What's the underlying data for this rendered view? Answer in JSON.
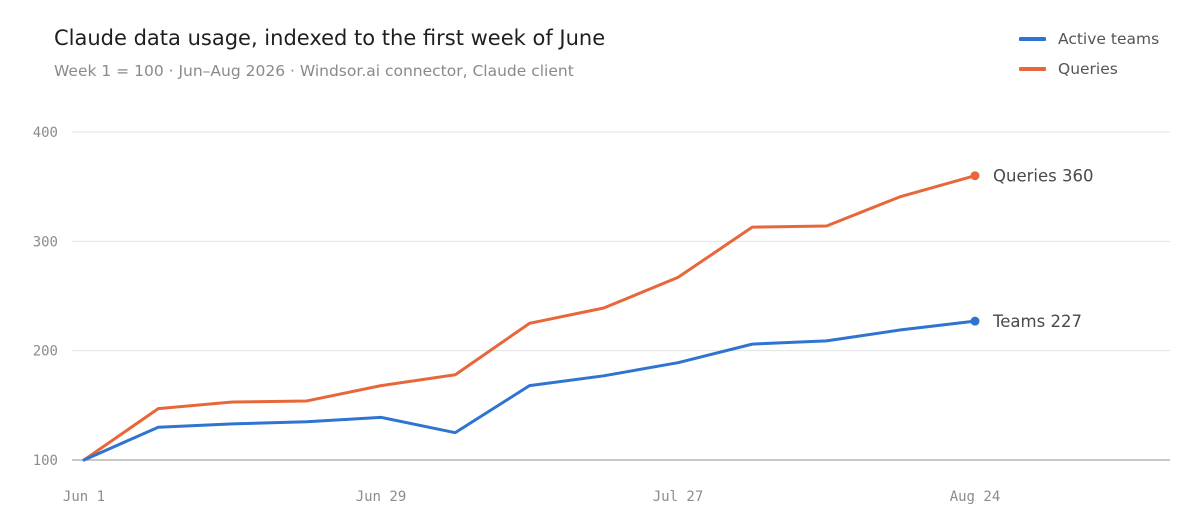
{
  "chart_data": {
    "type": "line",
    "title": "Claude data usage, indexed to the first week of June",
    "subtitle": "Week 1 = 100 · Jun–Aug 2026 · Windsor.ai connector, Claude client",
    "x": [
      "Jun 1",
      "Jun 8",
      "Jun 15",
      "Jun 22",
      "Jun 29",
      "Jul 6",
      "Jul 13",
      "Jul 20",
      "Jul 27",
      "Aug 3",
      "Aug 10",
      "Aug 17",
      "Aug 24"
    ],
    "x_tick_labels": [
      "Jun 1",
      "Jun 29",
      "Jul 27",
      "Aug 24"
    ],
    "y_ticks": [
      100,
      200,
      300,
      400
    ],
    "ylim": [
      100,
      400
    ],
    "grid": true,
    "legend_position": "top-right",
    "series": [
      {
        "name": "Active teams",
        "color": "#2f74d0",
        "values": [
          100,
          130,
          133,
          135,
          139,
          125,
          168,
          177,
          189,
          206,
          209,
          219,
          227
        ],
        "end_label": "Teams 227"
      },
      {
        "name": "Queries",
        "color": "#e8673a",
        "values": [
          100,
          147,
          153,
          154,
          168,
          178,
          225,
          239,
          267,
          313,
          314,
          341,
          360
        ],
        "end_label": "Queries 360"
      }
    ]
  },
  "colors": {
    "grid": "#e3e3e3",
    "baseline": "#b5b5b5"
  }
}
